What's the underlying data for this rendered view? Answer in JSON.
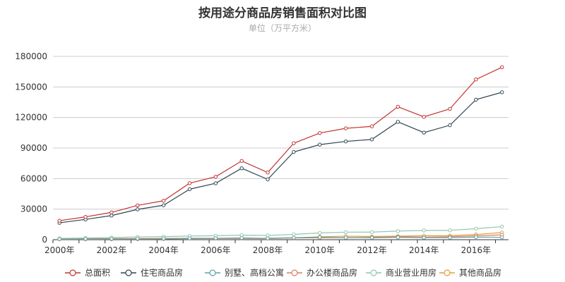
{
  "chart_data": {
    "type": "line",
    "title": "按用途分商品房销售面积对比图",
    "subtitle": "单位（万平方米）",
    "x": [
      "2000年",
      "2001年",
      "2002年",
      "2003年",
      "2004年",
      "2005年",
      "2006年",
      "2007年",
      "2008年",
      "2009年",
      "2010年",
      "2011年",
      "2012年",
      "2013年",
      "2014年",
      "2015年",
      "2016年",
      "2017年"
    ],
    "x_tick_labels": [
      "2000年",
      "2002年",
      "2004年",
      "2006年",
      "2008年",
      "2010年",
      "2012年",
      "2014年",
      "2016年"
    ],
    "ylim": [
      0,
      180000
    ],
    "yticks": [
      0,
      30000,
      60000,
      90000,
      120000,
      150000,
      180000
    ],
    "grid": true,
    "legend_position": "bottom",
    "series": [
      {
        "name": "总面积",
        "color": "#c23531",
        "values": [
          18637,
          22412,
          26808,
          33718,
          38232,
          55486,
          61857,
          77355,
          65970,
          94755,
          104765,
          109367,
          111304,
          130551,
          120649,
          128495,
          157349,
          169408
        ]
      },
      {
        "name": "住宅商品房",
        "color": "#2f4554",
        "values": [
          16570,
          19939,
          23702,
          29779,
          33820,
          49588,
          55423,
          70136,
          59280,
          86185,
          93377,
          96528,
          98468,
          115723,
          105188,
          112406,
          137540,
          144789
        ]
      },
      {
        "name": "别墅、高档公寓",
        "color": "#61a0a8",
        "values": [
          569,
          868,
          1021,
          1179,
          1232,
          1360,
          1444,
          1751,
          1338,
          2008,
          2253,
          2015,
          1925,
          2287,
          2049,
          2032,
          2545,
          2390
        ]
      },
      {
        "name": "办公楼商品房",
        "color": "#d48265",
        "values": [
          369,
          429,
          468,
          563,
          707,
          1053,
          1204,
          1399,
          1352,
          1671,
          1882,
          2005,
          2253,
          2884,
          2499,
          2913,
          3826,
          4756
        ]
      },
      {
        "name": "商业营业用房",
        "color": "#91c7ae",
        "values": [
          1325,
          1637,
          2081,
          2725,
          3008,
          3617,
          3887,
          4522,
          4244,
          5188,
          6642,
          7402,
          7459,
          8469,
          9075,
          9200,
          10830,
          12838
        ]
      },
      {
        "name": "其他商品房",
        "color": "#e69d3b",
        "values": [
          373,
          407,
          557,
          652,
          697,
          1228,
          1343,
          1298,
          1094,
          1711,
          2864,
          3432,
          3124,
          3475,
          3887,
          3976,
          5153,
          7025
        ]
      }
    ]
  }
}
